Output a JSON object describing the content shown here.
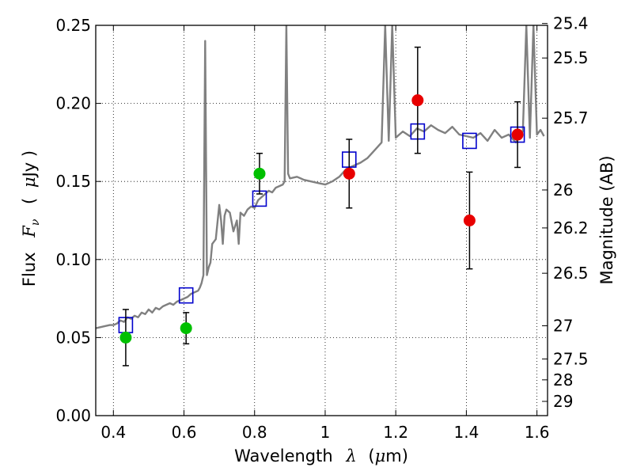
{
  "chart_data": {
    "type": "scatter",
    "title": "",
    "xlabel_text": "Wavelength",
    "xlabel_symbol": "λ",
    "xlabel_unit_open": "(",
    "xlabel_unit_mu": "μ",
    "xlabel_unit_rest": "m)",
    "ylabel_text": "Flux",
    "ylabel_symbol": "F",
    "ylabel_subscript": "ν",
    "ylabel_unit_open": "(",
    "ylabel_unit_mu": "μ",
    "ylabel_unit_rest": "Jy )",
    "y2label": "Magnitude (AB)",
    "xlim": [
      0.35,
      1.63
    ],
    "ylim": [
      0.0,
      0.25
    ],
    "grid": true,
    "x_ticks": [
      0.4,
      0.6,
      0.8,
      1.0,
      1.2,
      1.4,
      1.6
    ],
    "x_tick_labels": [
      "0.4",
      "0.6",
      "0.8",
      "1",
      "1.2",
      "1.4",
      "1.6"
    ],
    "y_ticks": [
      0.0,
      0.05,
      0.1,
      0.15,
      0.2,
      0.25
    ],
    "y_tick_labels": [
      "0.00",
      "0.05",
      "0.10",
      "0.15",
      "0.20",
      "0.25"
    ],
    "mag_ticks": [
      25.4,
      25.5,
      25.7,
      26,
      26.2,
      26.5,
      27,
      27.5,
      28,
      29
    ],
    "mag_tick_labels": [
      "25.4",
      "25.5",
      "25.7",
      "26",
      "26.2",
      "26.5",
      "27",
      "27.5",
      "28",
      "29"
    ],
    "colors": {
      "spectrum": "#808080",
      "green": "#00c000",
      "red": "#e80000",
      "model": "#0000cc",
      "errorbar": "#000000"
    },
    "series": [
      {
        "name": "model-spectrum",
        "kind": "line",
        "x": [
          0.35,
          0.37,
          0.39,
          0.4,
          0.41,
          0.42,
          0.43,
          0.44,
          0.45,
          0.46,
          0.47,
          0.48,
          0.49,
          0.5,
          0.51,
          0.52,
          0.53,
          0.54,
          0.55,
          0.56,
          0.57,
          0.58,
          0.59,
          0.6,
          0.61,
          0.62,
          0.63,
          0.64,
          0.645,
          0.65,
          0.655,
          0.66,
          0.665,
          0.67,
          0.675,
          0.68,
          0.69,
          0.7,
          0.705,
          0.71,
          0.715,
          0.72,
          0.73,
          0.74,
          0.75,
          0.755,
          0.76,
          0.77,
          0.78,
          0.79,
          0.8,
          0.81,
          0.82,
          0.83,
          0.84,
          0.85,
          0.86,
          0.87,
          0.88,
          0.885,
          0.89,
          0.895,
          0.9,
          0.92,
          0.94,
          0.96,
          0.98,
          1.0,
          1.02,
          1.04,
          1.06,
          1.08,
          1.1,
          1.12,
          1.14,
          1.16,
          1.17,
          1.18,
          1.19,
          1.2,
          1.21,
          1.22,
          1.24,
          1.26,
          1.28,
          1.3,
          1.32,
          1.34,
          1.36,
          1.38,
          1.4,
          1.42,
          1.44,
          1.46,
          1.48,
          1.5,
          1.52,
          1.54,
          1.56,
          1.57,
          1.58,
          1.59,
          1.6,
          1.61,
          1.62
        ],
        "y": [
          0.056,
          0.057,
          0.058,
          0.058,
          0.059,
          0.061,
          0.06,
          0.063,
          0.062,
          0.064,
          0.063,
          0.066,
          0.065,
          0.068,
          0.066,
          0.069,
          0.068,
          0.07,
          0.071,
          0.072,
          0.071,
          0.073,
          0.074,
          0.075,
          0.076,
          0.078,
          0.079,
          0.08,
          0.082,
          0.085,
          0.09,
          0.24,
          0.09,
          0.095,
          0.098,
          0.11,
          0.113,
          0.135,
          0.125,
          0.11,
          0.128,
          0.132,
          0.13,
          0.118,
          0.125,
          0.11,
          0.13,
          0.128,
          0.132,
          0.134,
          0.133,
          0.138,
          0.14,
          0.142,
          0.144,
          0.143,
          0.146,
          0.147,
          0.148,
          0.15,
          0.25,
          0.155,
          0.152,
          0.153,
          0.151,
          0.15,
          0.149,
          0.148,
          0.15,
          0.153,
          0.158,
          0.16,
          0.162,
          0.165,
          0.17,
          0.175,
          0.25,
          0.176,
          0.25,
          0.178,
          0.18,
          0.182,
          0.179,
          0.184,
          0.182,
          0.186,
          0.183,
          0.181,
          0.185,
          0.18,
          0.179,
          0.178,
          0.181,
          0.176,
          0.183,
          0.178,
          0.18,
          0.175,
          0.182,
          0.25,
          0.178,
          0.25,
          0.18,
          0.183,
          0.179
        ]
      },
      {
        "name": "green-photometry",
        "kind": "points",
        "x": [
          0.435,
          0.606,
          0.814
        ],
        "y": [
          0.05,
          0.056,
          0.155
        ],
        "err": [
          0.018,
          0.01,
          0.013
        ]
      },
      {
        "name": "red-photometry",
        "kind": "points",
        "x": [
          1.068,
          1.262,
          1.409,
          1.545
        ],
        "y": [
          0.155,
          0.202,
          0.125,
          0.18
        ],
        "err": [
          0.022,
          0.034,
          0.031,
          0.021
        ]
      },
      {
        "name": "model-photometry",
        "kind": "squares",
        "x": [
          0.435,
          0.606,
          0.814,
          1.068,
          1.262,
          1.409,
          1.545
        ],
        "y": [
          0.058,
          0.077,
          0.139,
          0.164,
          0.182,
          0.176,
          0.18
        ]
      }
    ]
  }
}
